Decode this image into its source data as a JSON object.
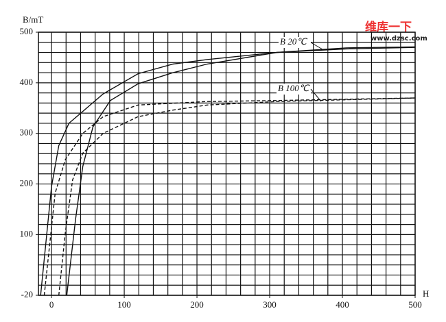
{
  "chart_data": {
    "type": "line",
    "y_label": "B/mT",
    "x_label": "H",
    "xlim": [
      -18,
      500
    ],
    "ylim": [
      -20,
      500
    ],
    "xticks": [
      0,
      100,
      200,
      300,
      400,
      500
    ],
    "yticks": [
      -20,
      100,
      200,
      300,
      400,
      500
    ],
    "grid": true,
    "xgrid_step": 20,
    "ygrid_step": 20,
    "annotations": [
      "B 20℃",
      "B 100℃"
    ],
    "watermark": [
      "维库一下",
      "www.dzsc.com"
    ],
    "series": [
      {
        "color": "#111",
        "style": "solid",
        "x": [
          -15,
          0,
          10,
          24,
          71,
          119,
          167,
          214,
          310,
          405,
          500
        ],
        "values": [
          -20,
          195,
          276,
          320,
          378,
          418,
          437,
          446,
          460,
          467,
          470
        ]
      },
      {
        "color": "#111",
        "style": "solid",
        "x": [
          21,
          33,
          43,
          57,
          81,
          119,
          167,
          214,
          310,
          405,
          500
        ],
        "values": [
          -20,
          130,
          235,
          313,
          365,
          398,
          420,
          437,
          460,
          469,
          471
        ]
      },
      {
        "color": "#111",
        "style": "dashed",
        "x": [
          -10,
          5,
          19,
          43,
          71,
          119,
          214,
          310,
          500
        ],
        "values": [
          -20,
          182,
          248,
          300,
          333,
          356,
          363,
          365,
          370
        ]
      },
      {
        "color": "#111",
        "style": "dashed",
        "x": [
          10,
          19,
          29,
          43,
          71,
          119,
          167,
          214,
          310,
          500
        ],
        "values": [
          -20,
          104,
          208,
          261,
          300,
          333,
          346,
          356,
          363,
          370
        ]
      }
    ]
  }
}
